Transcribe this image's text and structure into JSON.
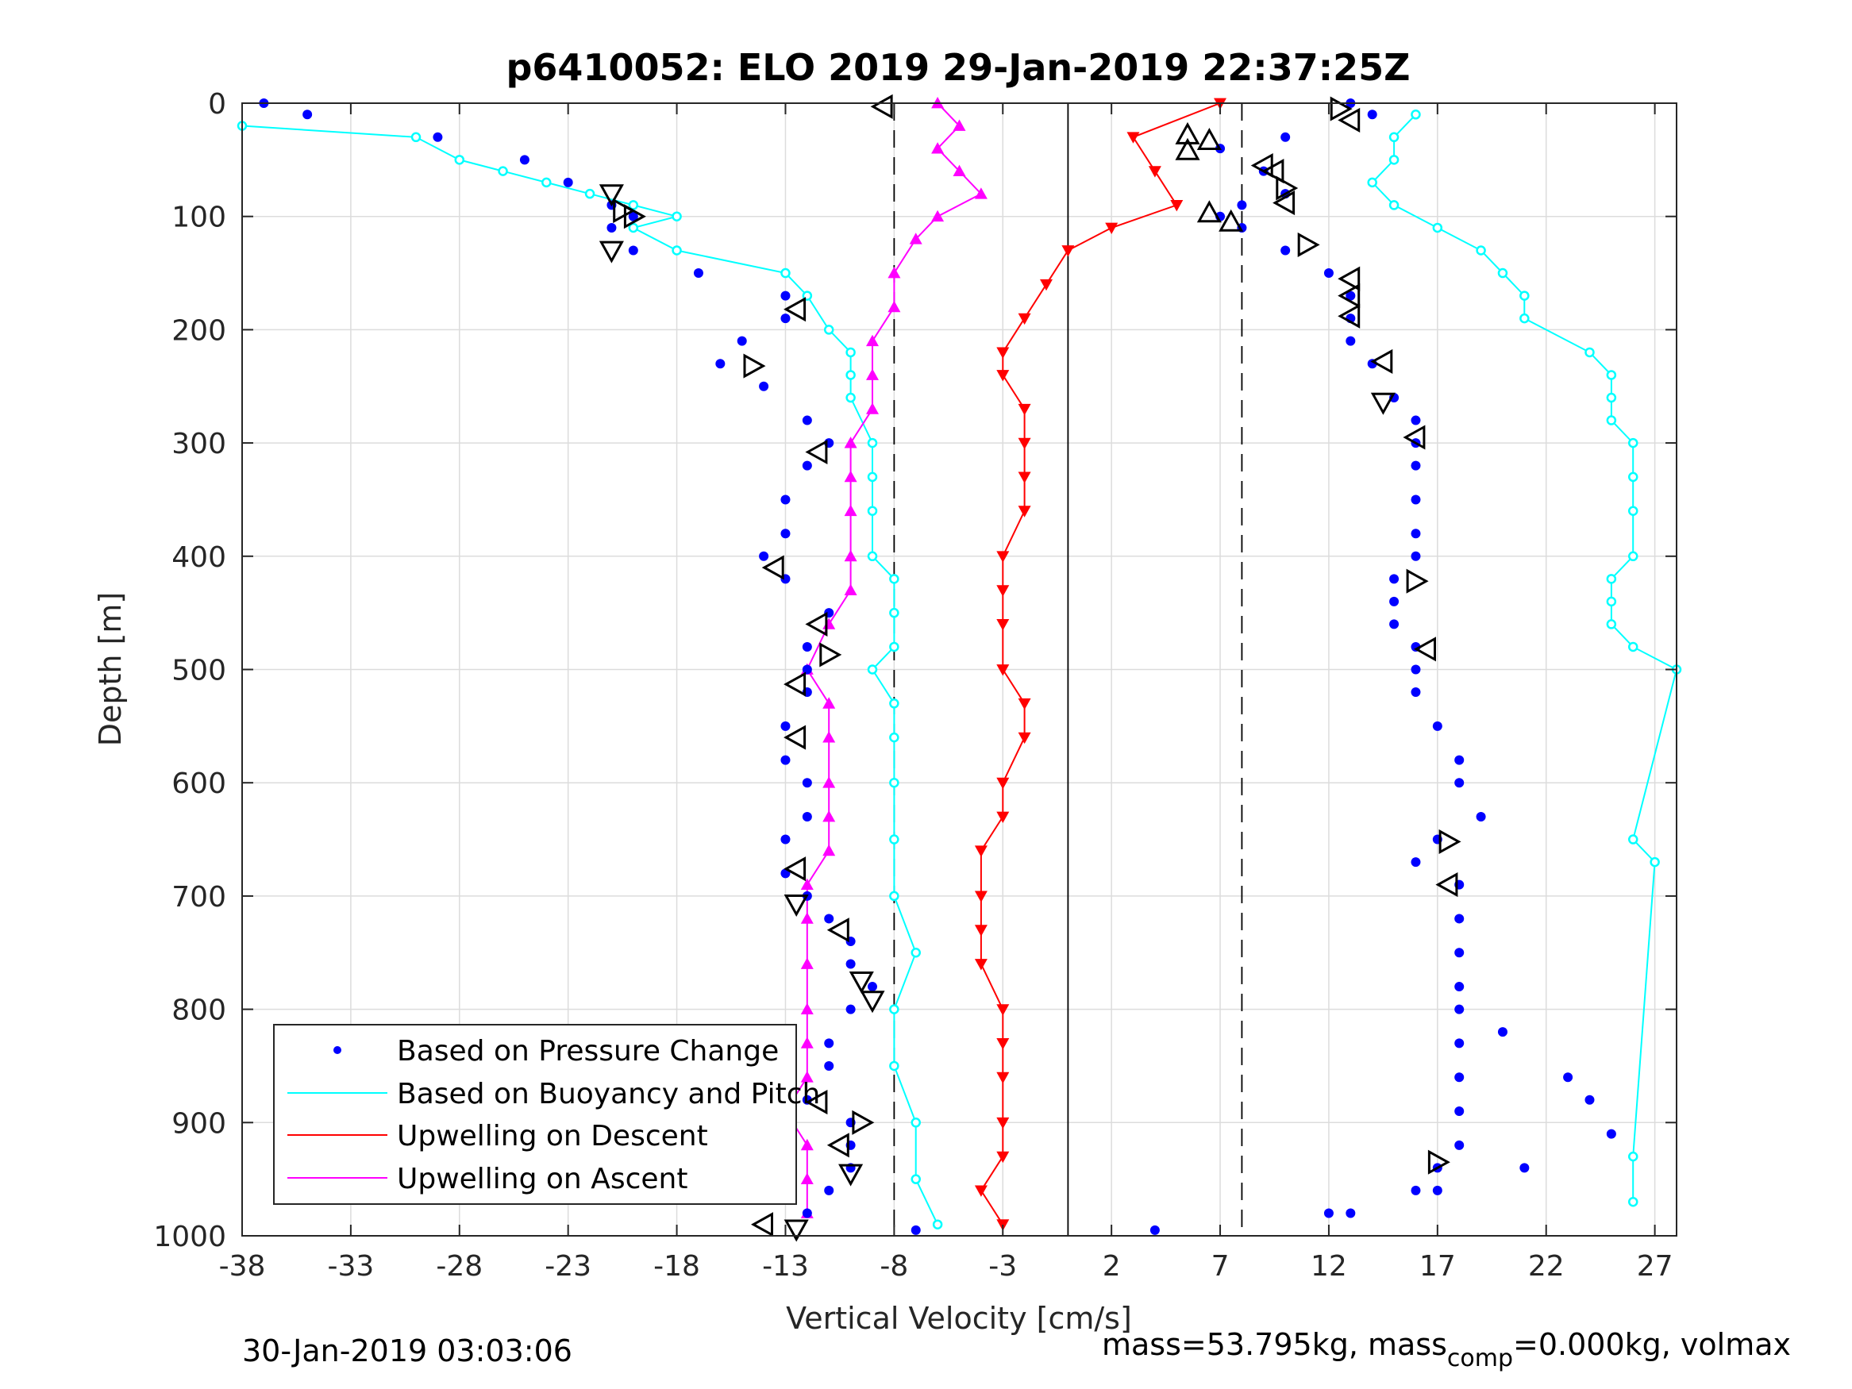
{
  "chart_data": {
    "type": "scatter",
    "title": "p6410052: ELO 2019 29-Jan-2019 22:37:25Z",
    "xlabel": "Vertical Velocity [cm/s]",
    "ylabel": "Depth [m]",
    "xlim": [
      -38,
      28
    ],
    "ylim": [
      0,
      1000
    ],
    "y_reversed": true,
    "grid": true,
    "xticks": [
      -38,
      -33,
      -28,
      -23,
      -18,
      -13,
      -8,
      -3,
      2,
      7,
      12,
      17,
      22,
      27
    ],
    "yticks": [
      0,
      100,
      200,
      300,
      400,
      500,
      600,
      700,
      800,
      900,
      1000
    ],
    "xtick_labels": [
      "-38",
      "-33",
      "-28",
      "-23",
      "-18",
      "-13",
      "-8",
      "-3",
      "2",
      "7",
      "12",
      "17",
      "22",
      "27"
    ],
    "ytick_labels": [
      "0",
      "100",
      "200",
      "300",
      "400",
      "500",
      "600",
      "700",
      "800",
      "900",
      "1000"
    ],
    "legend_position": "bottom-left",
    "reference_lines": [
      {
        "style": "dashed",
        "x": -8
      },
      {
        "style": "solid",
        "x": 0
      },
      {
        "style": "dashed",
        "x": 8
      }
    ],
    "series": [
      {
        "name": "Based on Pressure Change",
        "color": "#0000ff",
        "marker": "dot",
        "profiles": [
          {
            "depth": [
              0,
              10,
              30,
              50,
              70,
              90,
              100,
              110,
              130,
              150,
              170,
              190,
              210,
              230,
              250,
              280,
              300,
              320,
              350,
              380,
              400,
              420,
              450,
              480,
              500,
              520,
              550,
              580,
              600,
              630,
              650,
              680,
              700,
              720,
              740,
              760,
              780,
              800,
              830,
              850,
              880,
              900,
              920,
              940,
              960,
              980,
              995
            ],
            "x": [
              -37,
              -35,
              -29,
              -25,
              -23,
              -21,
              -20,
              -21,
              -20,
              -17,
              -13,
              -13,
              -15,
              -16,
              -14,
              -12,
              -11,
              -12,
              -13,
              -13,
              -14,
              -13,
              -11,
              -12,
              -12,
              -12,
              -13,
              -13,
              -12,
              -12,
              -13,
              -13,
              -12,
              -11,
              -10,
              -10,
              -9,
              -10,
              -11,
              -11,
              -12,
              -10,
              -10,
              -10,
              -11,
              -12,
              -7
            ]
          },
          {
            "depth": [
              0,
              10,
              30,
              40,
              60,
              80,
              90,
              100,
              110,
              130,
              150,
              170,
              190,
              210,
              230,
              260,
              280,
              300,
              320,
              350,
              380,
              400,
              420,
              440,
              460,
              480,
              500,
              520,
              550,
              580,
              600,
              630,
              650,
              670,
              690,
              720,
              750,
              780,
              800,
              830,
              860,
              890,
              920,
              940,
              960,
              980,
              995
            ],
            "x": [
              13,
              14,
              10,
              7,
              9,
              10,
              8,
              7,
              8,
              10,
              12,
              13,
              13,
              13,
              14,
              15,
              16,
              16,
              16,
              16,
              16,
              16,
              15,
              15,
              15,
              16,
              16,
              16,
              17,
              18,
              18,
              19,
              17,
              16,
              18,
              18,
              18,
              18,
              18,
              18,
              18,
              18,
              18,
              17,
              16,
              13,
              4
            ]
          },
          {
            "depth": [
              820,
              860,
              880,
              910,
              940,
              960,
              980
            ],
            "x": [
              20,
              23,
              24,
              25,
              21,
              17,
              12
            ]
          }
        ]
      },
      {
        "name": "Based on Buoyancy and Pitch",
        "color": "#00ffff",
        "marker": "circle-line",
        "profiles": [
          {
            "depth": [
              20,
              30,
              50,
              60,
              70,
              80,
              90,
              100,
              110,
              130,
              150,
              170,
              200,
              220,
              240,
              260,
              300,
              330,
              360,
              400,
              420,
              450,
              480,
              500,
              530,
              560,
              600,
              650,
              700,
              750,
              800,
              850,
              900,
              950,
              990
            ],
            "x": [
              -38,
              -30,
              -28,
              -26,
              -24,
              -22,
              -20,
              -18,
              -20,
              -18,
              -13,
              -12,
              -11,
              -10,
              -10,
              -10,
              -9,
              -9,
              -9,
              -9,
              -8,
              -8,
              -8,
              -9,
              -8,
              -8,
              -8,
              -8,
              -8,
              -7,
              -8,
              -8,
              -7,
              -7,
              -6
            ]
          },
          {
            "depth": [
              10,
              30,
              50,
              70,
              90,
              110,
              130,
              150,
              170,
              190,
              220,
              240,
              260,
              280,
              300,
              330,
              360,
              400,
              420,
              440,
              460,
              480,
              500,
              650,
              670,
              930,
              970
            ],
            "x": [
              16,
              15,
              15,
              14,
              15,
              17,
              19,
              20,
              21,
              21,
              24,
              25,
              25,
              25,
              26,
              26,
              26,
              26,
              25,
              25,
              25,
              26,
              28,
              26,
              27,
              26,
              26
            ]
          }
        ]
      },
      {
        "name": "Upwelling on Descent",
        "color": "#ff0000",
        "marker": "triangle-down-line",
        "profiles": [
          {
            "depth": [
              0,
              30,
              60,
              90,
              110,
              130,
              160,
              190,
              220,
              240,
              270,
              300,
              330,
              360,
              400,
              430,
              460,
              500,
              530,
              560,
              600,
              630,
              660,
              700,
              730,
              760,
              800,
              830,
              860,
              900,
              930,
              960,
              990
            ],
            "x": [
              7,
              3,
              4,
              5,
              2,
              0,
              -1,
              -2,
              -3,
              -3,
              -2,
              -2,
              -2,
              -2,
              -3,
              -3,
              -3,
              -3,
              -2,
              -2,
              -3,
              -3,
              -4,
              -4,
              -4,
              -4,
              -3,
              -3,
              -3,
              -3,
              -3,
              -4,
              -3
            ]
          }
        ]
      },
      {
        "name": "Upwelling on Ascent",
        "color": "#ff00ff",
        "marker": "triangle-up-line",
        "profiles": [
          {
            "depth": [
              0,
              20,
              40,
              60,
              80,
              100,
              120,
              150,
              180,
              210,
              240,
              270,
              300,
              330,
              360,
              400,
              430,
              460,
              500,
              530,
              560,
              600,
              630,
              660,
              690,
              720,
              760,
              800,
              830,
              860,
              890,
              920,
              950,
              980
            ],
            "x": [
              -6,
              -5,
              -6,
              -5,
              -4,
              -6,
              -7,
              -8,
              -8,
              -9,
              -9,
              -9,
              -10,
              -10,
              -10,
              -10,
              -10,
              -11,
              -12,
              -11,
              -11,
              -11,
              -11,
              -11,
              -12,
              -12,
              -12,
              -12,
              -12,
              -12,
              -13,
              -12,
              -12,
              -12
            ]
          }
        ]
      }
    ],
    "markers": [
      {
        "shape": "triangle-left",
        "x": -8.5,
        "depth": 3
      },
      {
        "shape": "triangle-right",
        "x": 12.5,
        "depth": 5
      },
      {
        "shape": "triangle-left",
        "x": 13,
        "depth": 15
      },
      {
        "shape": "triangle-up",
        "x": 5.5,
        "depth": 28
      },
      {
        "shape": "triangle-up",
        "x": 6.5,
        "depth": 33
      },
      {
        "shape": "triangle-up",
        "x": 5.5,
        "depth": 42
      },
      {
        "shape": "triangle-left",
        "x": 9,
        "depth": 55
      },
      {
        "shape": "triangle-left",
        "x": 9.5,
        "depth": 60
      },
      {
        "shape": "triangle-right",
        "x": 10,
        "depth": 75
      },
      {
        "shape": "triangle-down",
        "x": -21,
        "depth": 80
      },
      {
        "shape": "triangle-left",
        "x": 10,
        "depth": 88
      },
      {
        "shape": "triangle-right",
        "x": -20.5,
        "depth": 95
      },
      {
        "shape": "triangle-up",
        "x": 6.5,
        "depth": 97
      },
      {
        "shape": "triangle-right",
        "x": -20,
        "depth": 100
      },
      {
        "shape": "triangle-up",
        "x": 7.5,
        "depth": 105
      },
      {
        "shape": "triangle-right",
        "x": 11,
        "depth": 125
      },
      {
        "shape": "triangle-down",
        "x": -21,
        "depth": 130
      },
      {
        "shape": "triangle-left",
        "x": 13,
        "depth": 155
      },
      {
        "shape": "triangle-left",
        "x": 13,
        "depth": 170
      },
      {
        "shape": "triangle-left",
        "x": -12.5,
        "depth": 182
      },
      {
        "shape": "triangle-left",
        "x": 13,
        "depth": 188
      },
      {
        "shape": "triangle-left",
        "x": 14.5,
        "depth": 228
      },
      {
        "shape": "triangle-right",
        "x": -14.5,
        "depth": 232
      },
      {
        "shape": "triangle-down",
        "x": 14.5,
        "depth": 264
      },
      {
        "shape": "triangle-left",
        "x": 16,
        "depth": 295
      },
      {
        "shape": "triangle-left",
        "x": -11.5,
        "depth": 308
      },
      {
        "shape": "triangle-left",
        "x": -13.5,
        "depth": 410
      },
      {
        "shape": "triangle-right",
        "x": 16,
        "depth": 422
      },
      {
        "shape": "triangle-left",
        "x": -11.5,
        "depth": 460
      },
      {
        "shape": "triangle-left",
        "x": 16.5,
        "depth": 482
      },
      {
        "shape": "triangle-right",
        "x": -11,
        "depth": 487
      },
      {
        "shape": "triangle-left",
        "x": -12.5,
        "depth": 513
      },
      {
        "shape": "triangle-left",
        "x": -12.5,
        "depth": 560
      },
      {
        "shape": "triangle-right",
        "x": 17.5,
        "depth": 652
      },
      {
        "shape": "triangle-left",
        "x": -12.5,
        "depth": 676
      },
      {
        "shape": "triangle-left",
        "x": 17.5,
        "depth": 690
      },
      {
        "shape": "triangle-down",
        "x": -12.5,
        "depth": 707
      },
      {
        "shape": "triangle-left",
        "x": -10.5,
        "depth": 730
      },
      {
        "shape": "triangle-down",
        "x": -9.5,
        "depth": 775
      },
      {
        "shape": "triangle-down",
        "x": -9,
        "depth": 792
      },
      {
        "shape": "triangle-left",
        "x": -11.5,
        "depth": 882
      },
      {
        "shape": "triangle-right",
        "x": -9.5,
        "depth": 900
      },
      {
        "shape": "triangle-left",
        "x": -10.5,
        "depth": 920
      },
      {
        "shape": "triangle-right",
        "x": 17,
        "depth": 935
      },
      {
        "shape": "triangle-down",
        "x": -10,
        "depth": 945
      },
      {
        "shape": "triangle-left",
        "x": -14,
        "depth": 990
      },
      {
        "shape": "triangle-down",
        "x": -12.5,
        "depth": 994
      }
    ]
  },
  "footer": {
    "date": "30-Jan-2019 03:03:06",
    "mass_prefix": "mass=53.795kg, mass",
    "mass_sub": "comp",
    "mass_suffix": "=0.000kg, volmax"
  }
}
